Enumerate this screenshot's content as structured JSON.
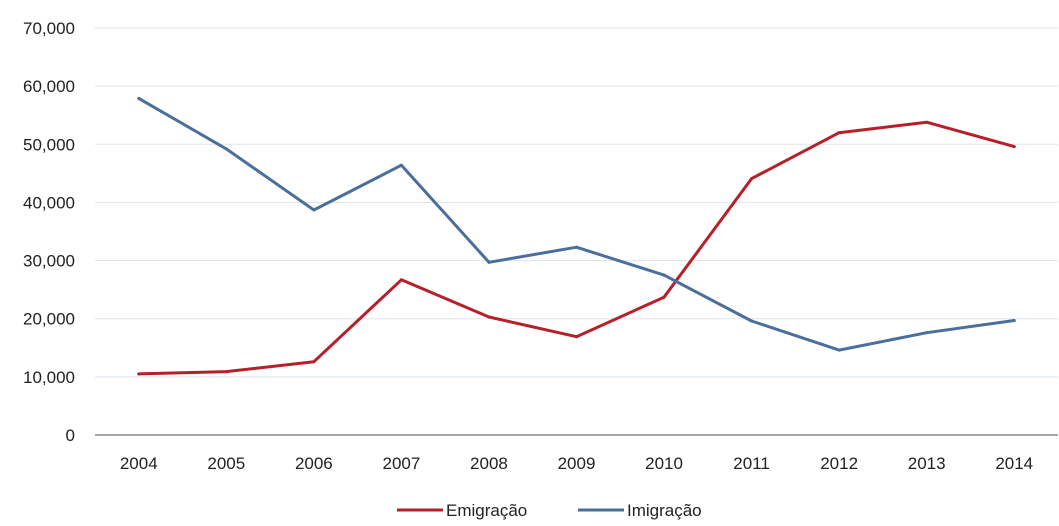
{
  "chart_data": {
    "type": "line",
    "title": "",
    "xlabel": "",
    "ylabel": "",
    "categories": [
      "2004",
      "2005",
      "2006",
      "2007",
      "2008",
      "2009",
      "2010",
      "2011",
      "2012",
      "2013",
      "2014"
    ],
    "y_ticks": [
      "0",
      "10,000",
      "20,000",
      "30,000",
      "40,000",
      "50,000",
      "60,000",
      "70,000"
    ],
    "ylim": [
      0,
      70000
    ],
    "grid": true,
    "legend_position": "bottom",
    "series": [
      {
        "name": "Emigração",
        "color": "#b5202a",
        "values": [
          10500,
          10900,
          12600,
          26700,
          20300,
          16900,
          23700,
          44100,
          52000,
          53800,
          49600
        ]
      },
      {
        "name": "Imigração",
        "color": "#4a6f9a",
        "values": [
          57900,
          49200,
          38700,
          46400,
          29700,
          32300,
          27500,
          19600,
          14600,
          17600,
          19700
        ]
      }
    ]
  }
}
